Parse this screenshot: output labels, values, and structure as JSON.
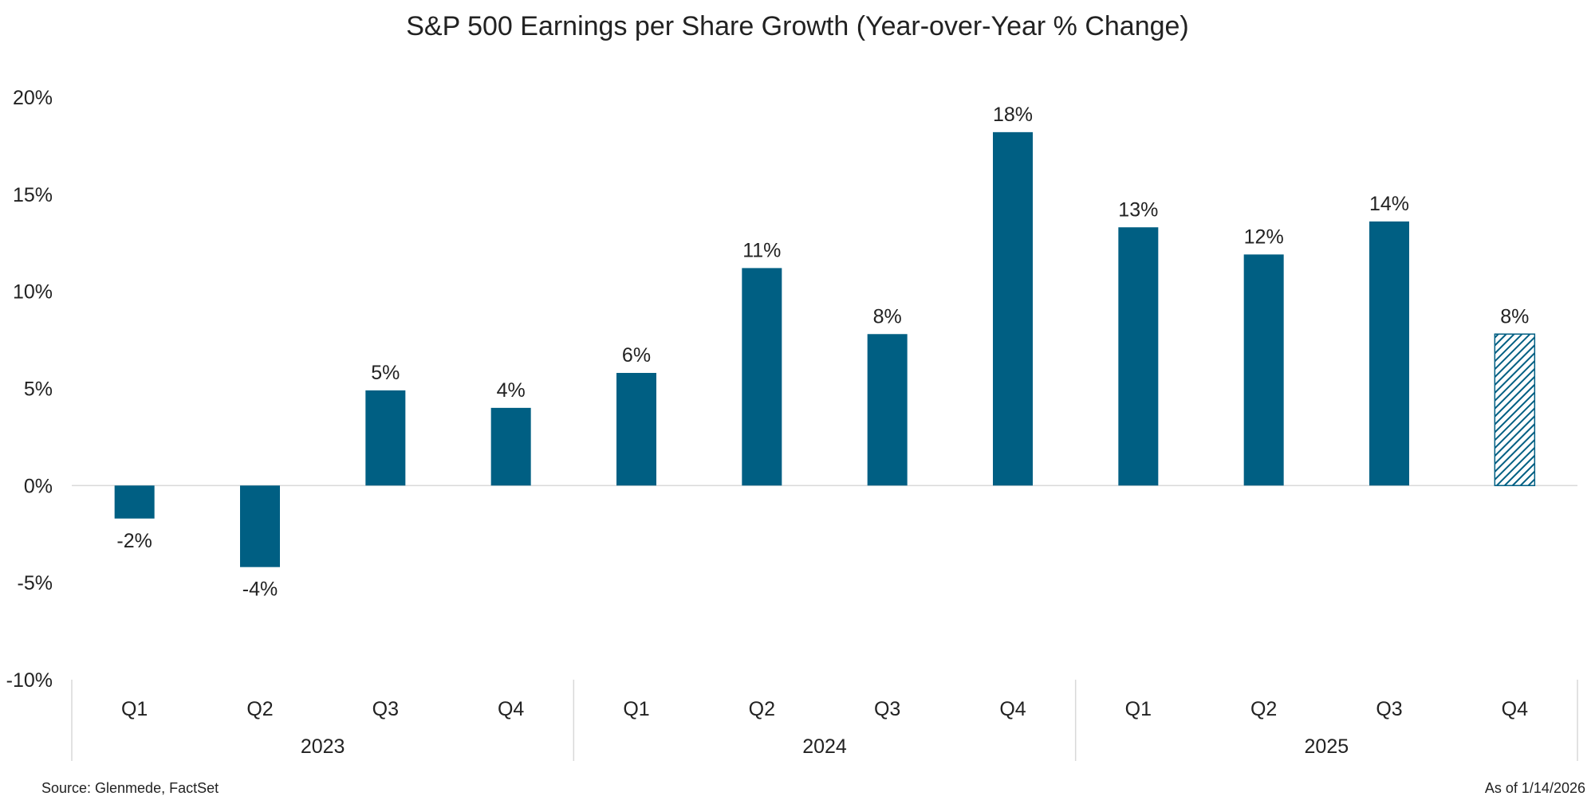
{
  "chart_data": {
    "type": "bar",
    "title": "S&P 500 Earnings per Share Growth (Year-over-Year % Change)",
    "xlabel": "",
    "ylabel": "",
    "ylim": [
      -10,
      20
    ],
    "yticks": [
      20,
      15,
      10,
      5,
      0,
      -5,
      -10
    ],
    "ytick_labels": [
      "20%",
      "15%",
      "10%",
      "5%",
      "0%",
      "-5%",
      "-10%"
    ],
    "grid": false,
    "legend": "none",
    "categories": [
      "Q1",
      "Q2",
      "Q3",
      "Q4",
      "Q1",
      "Q2",
      "Q3",
      "Q4",
      "Q1",
      "Q2",
      "Q3",
      "Q4"
    ],
    "groups": [
      {
        "label": "2023",
        "count": 4
      },
      {
        "label": "2024",
        "count": 4
      },
      {
        "label": "2025",
        "count": 4
      }
    ],
    "values": [
      -1.7,
      -4.2,
      4.9,
      4.0,
      5.8,
      11.2,
      7.8,
      18.2,
      13.3,
      11.9,
      13.6,
      7.8
    ],
    "data_labels": [
      "-2%",
      "-4%",
      "5%",
      "4%",
      "6%",
      "11%",
      "8%",
      "18%",
      "13%",
      "12%",
      "14%",
      "8%"
    ],
    "estimate_flags": [
      false,
      false,
      false,
      false,
      false,
      false,
      false,
      false,
      false,
      false,
      false,
      true
    ],
    "bar_color": "#005F83"
  },
  "footer": {
    "source": "Source: Glenmede, FactSet",
    "as_of": "As of 1/14/2026"
  }
}
